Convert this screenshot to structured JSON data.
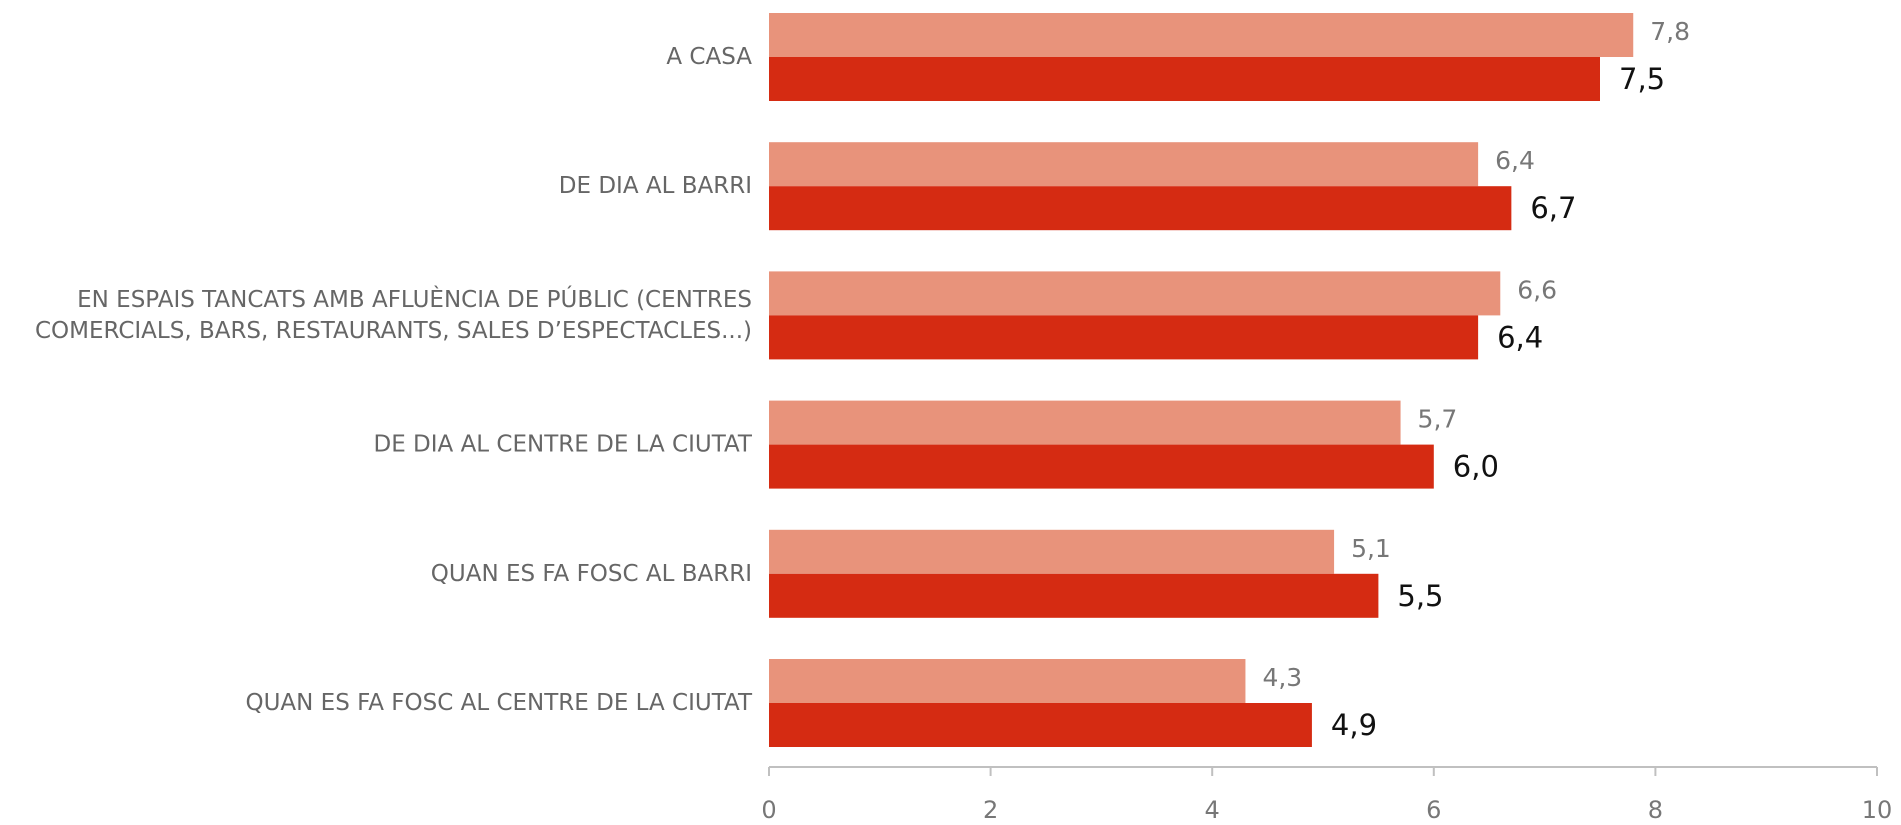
{
  "chart_data": {
    "type": "bar",
    "orientation": "horizontal",
    "categories": [
      "A CASA",
      "DE DIA AL BARRI",
      "EN ESPAIS TANCATS AMB AFLUÈNCIA DE PÚBLIC (CENTRES\nCOMERCIALS, BARS, RESTAURANTS, SALES D’ESPECTACLES...)",
      "DE DIA AL CENTRE DE LA CIUTAT",
      "QUAN ES FA FOSC AL BARRI",
      "QUAN ES FA FOSC AL CENTRE DE LA CIUTAT"
    ],
    "series": [
      {
        "color": "#e8937b",
        "values": [
          7.8,
          6.4,
          6.6,
          5.7,
          5.1,
          4.3
        ],
        "value_labels": [
          "7,8",
          "6,4",
          "6,6",
          "5,7",
          "5,1",
          "4,3"
        ]
      },
      {
        "color": "#d52b12",
        "values": [
          7.5,
          6.7,
          6.4,
          6.0,
          5.5,
          4.9
        ],
        "value_labels": [
          "7,5",
          "6,7",
          "6,4",
          "6,0",
          "5,5",
          "4,9"
        ]
      }
    ],
    "xlim": [
      0,
      10
    ],
    "xticks": [
      0,
      2,
      4,
      6,
      8,
      10
    ],
    "grid": false
  }
}
